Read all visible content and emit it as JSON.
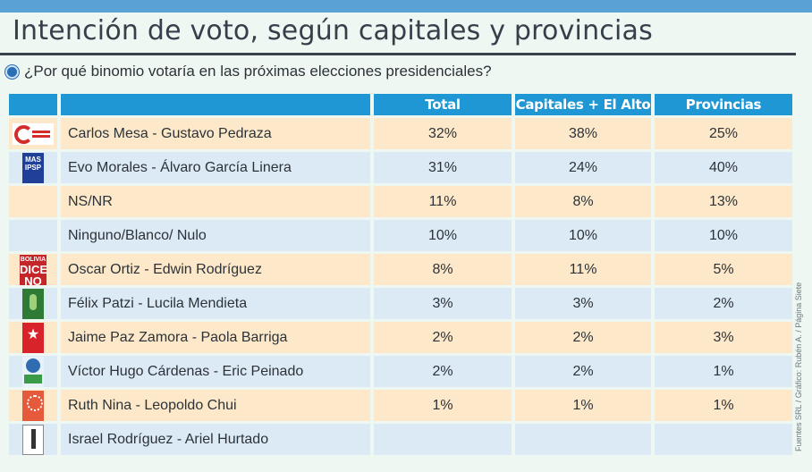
{
  "title": "Intención de voto, según capitales y provincias",
  "question": "¿Por qué binomio votaría en las próximas elecciones presidenciales?",
  "credit": "Fuentes SRL / Gráfico: Rubén A. / Página Siete",
  "colors": {
    "header": "#1f97d4",
    "row_odd": "#fde9c9",
    "row_even": "#dceaf6",
    "top_bar": "#5aa1d6"
  },
  "chart_data": {
    "type": "table",
    "columns": [
      "Total",
      "Capitales + El Alto",
      "Provincias"
    ],
    "rows": [
      {
        "name": "Carlos Mesa - Gustavo Pedraza",
        "logo": "comunidad-ciudadana-logo",
        "values": [
          "32%",
          "38%",
          "25%"
        ]
      },
      {
        "name": "Evo Morales - Álvaro García Linera",
        "logo": "mas-ipsp-logo",
        "values": [
          "31%",
          "24%",
          "40%"
        ]
      },
      {
        "name": "NS/NR",
        "logo": "",
        "values": [
          "11%",
          "8%",
          "13%"
        ]
      },
      {
        "name": "Ninguno/Blanco/ Nulo",
        "logo": "",
        "values": [
          "10%",
          "10%",
          "10%"
        ]
      },
      {
        "name": "Oscar Ortiz - Edwin Rodríguez",
        "logo": "bolivia-dice-no-logo",
        "values": [
          "8%",
          "11%",
          "5%"
        ]
      },
      {
        "name": "Félix Patzi - Lucila Mendieta",
        "logo": "mts-logo",
        "values": [
          "3%",
          "3%",
          "2%"
        ]
      },
      {
        "name": "Jaime Paz Zamora - Paola Barriga",
        "logo": "pdc-logo",
        "values": [
          "2%",
          "2%",
          "3%"
        ]
      },
      {
        "name": "Víctor Hugo Cárdenas - Eric Peinado",
        "logo": "ucs-logo",
        "values": [
          "2%",
          "2%",
          "1%"
        ]
      },
      {
        "name": "Ruth Nina - Leopoldo Chui",
        "logo": "pan-bol-logo",
        "values": [
          "1%",
          "1%",
          "1%"
        ]
      },
      {
        "name": "Israel Rodríguez - Ariel Hurtado",
        "logo": "fpv-logo",
        "values": [
          "",
          "",
          ""
        ]
      }
    ]
  }
}
